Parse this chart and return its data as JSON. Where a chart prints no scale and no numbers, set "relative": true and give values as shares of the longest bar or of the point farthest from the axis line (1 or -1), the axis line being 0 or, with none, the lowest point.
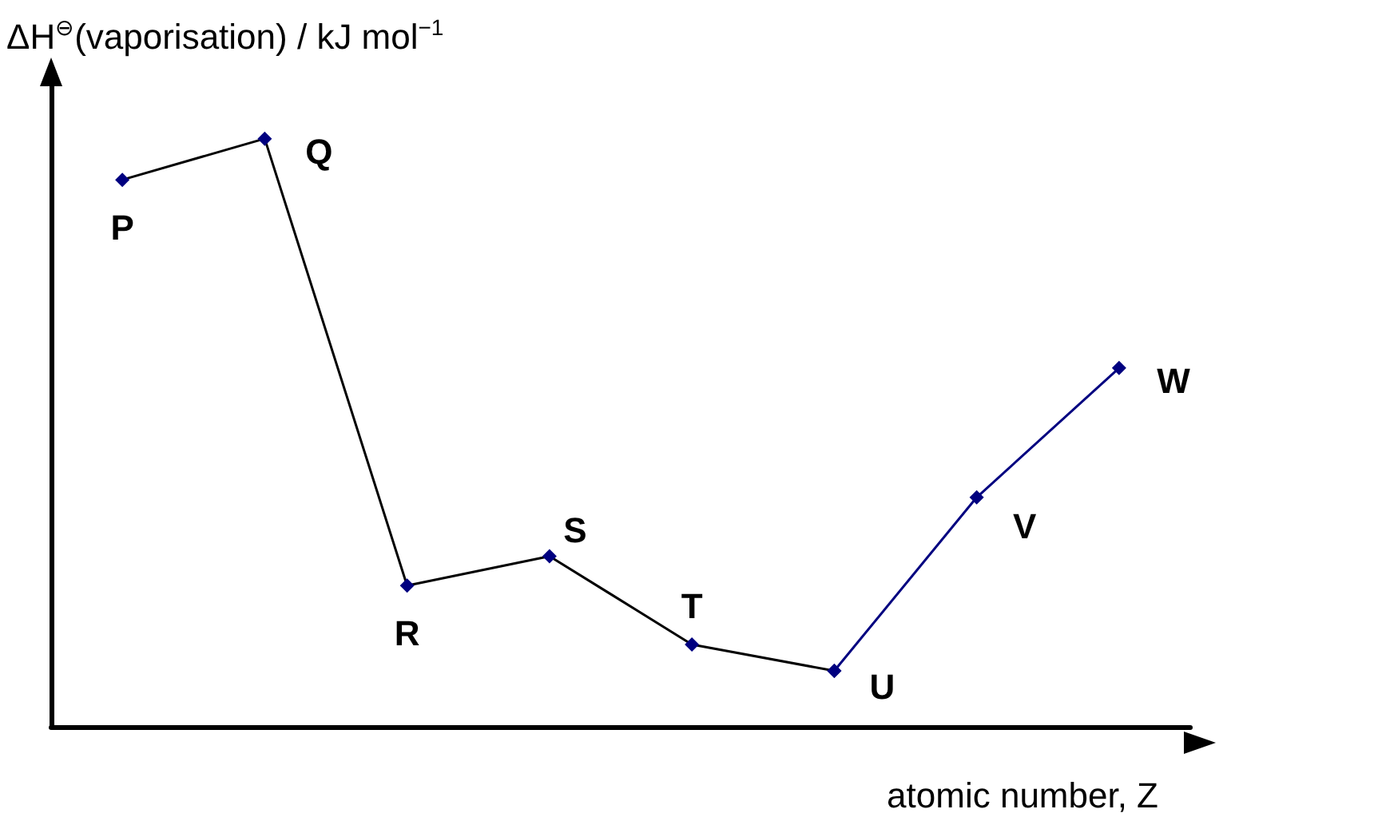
{
  "chart_data": {
    "type": "line",
    "relative": true,
    "xlabel": "atomic number, Z",
    "ylabel": "ΔH$^{⊖}$(vaporisation) / kJ mol$^{−1}$",
    "categories": [
      null,
      null,
      null,
      null,
      null,
      null,
      null,
      null
    ],
    "series": [
      {
        "color": "#000000",
        "values": [
          0.93,
          1,
          0.24,
          0.29,
          0.14,
          0.095,
          null,
          null
        ]
      },
      {
        "color": "#000080",
        "values": [
          null,
          null,
          null,
          null,
          null,
          0.095,
          0.39,
          0.61
        ]
      }
    ],
    "annotations": [
      "P",
      "Q",
      "R",
      "S",
      "T",
      "U",
      "V",
      "W"
    ],
    "grid": false,
    "marker": "diamond",
    "line_style": "solid"
  }
}
